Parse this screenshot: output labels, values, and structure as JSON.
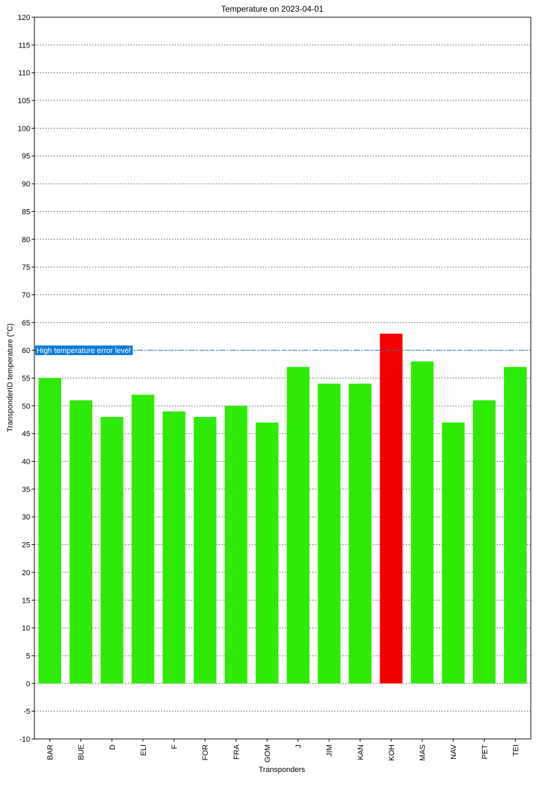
{
  "chart_data": {
    "type": "bar",
    "title": "Temperature on 2023-04-01",
    "xlabel": "Transponders",
    "ylabel": "TransponderID temperature (°C)",
    "ylim": [
      -10,
      120
    ],
    "ytick_step": 5,
    "grid": true,
    "categories": [
      "BAR",
      "BUE",
      "D",
      "ELI",
      "F",
      "FOR",
      "FRA",
      "GOM",
      "J",
      "JIM",
      "KAN",
      "KOH",
      "MAS",
      "NAV",
      "PET",
      "TEI"
    ],
    "values": [
      55,
      51,
      48,
      52,
      49,
      48,
      50,
      47,
      57,
      54,
      54,
      63,
      58,
      47,
      51,
      57
    ],
    "threshold": {
      "label": "High temperature error level",
      "value": 60,
      "color": "#0c7bd6"
    },
    "colors": {
      "normal": "#2deb06",
      "alert": "#f50000"
    }
  }
}
